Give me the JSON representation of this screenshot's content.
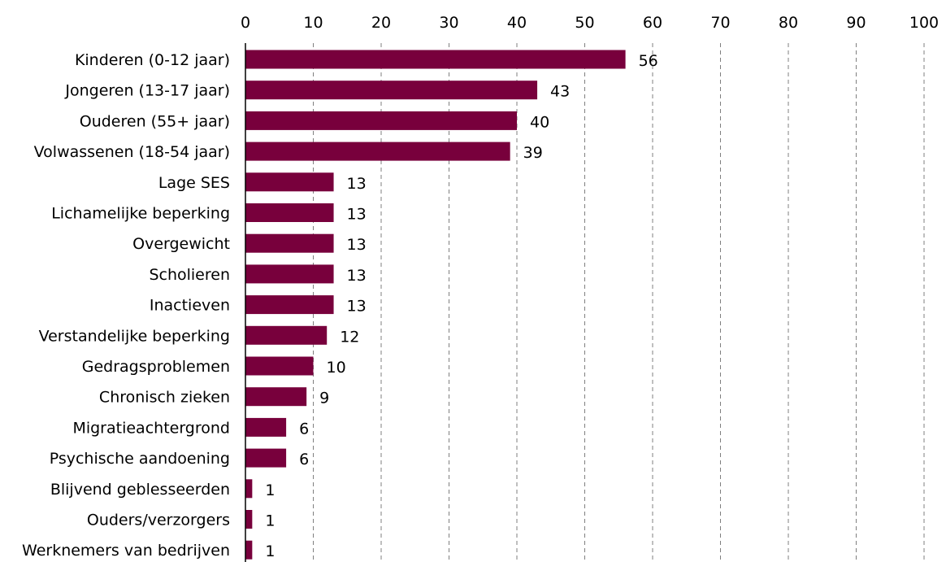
{
  "chart_data": {
    "type": "bar",
    "orientation": "horizontal",
    "title": "",
    "xlabel": "",
    "ylabel": "",
    "xlim": [
      0,
      100
    ],
    "x_ticks": [
      0,
      10,
      20,
      30,
      40,
      50,
      60,
      70,
      80,
      90,
      100
    ],
    "grid": true,
    "grid_style": "dashed",
    "bar_color": "#78003c",
    "categories": [
      "Kinderen (0-12 jaar)",
      "Jongeren (13-17 jaar)",
      "Ouderen (55+ jaar)",
      "Volwassenen (18-54 jaar)",
      "Lage SES",
      "Lichamelijke beperking",
      "Overgewicht",
      "Scholieren",
      "Inactieven",
      "Verstandelijke beperking",
      "Gedragsproblemen",
      "Chronisch zieken",
      "Migratieachtergrond",
      "Psychische aandoening",
      "Blijvend geblesseerden",
      "Ouders/verzorgers",
      "Werknemers van bedrijven"
    ],
    "values": [
      56,
      43,
      40,
      39,
      13,
      13,
      13,
      13,
      13,
      12,
      10,
      9,
      6,
      6,
      1,
      1,
      1
    ],
    "data_labels": [
      "56",
      "43",
      "40",
      "39",
      "13",
      "13",
      "13",
      "13",
      "13",
      "12",
      "10",
      "9",
      "6",
      "6",
      "1",
      "1",
      "1"
    ]
  }
}
